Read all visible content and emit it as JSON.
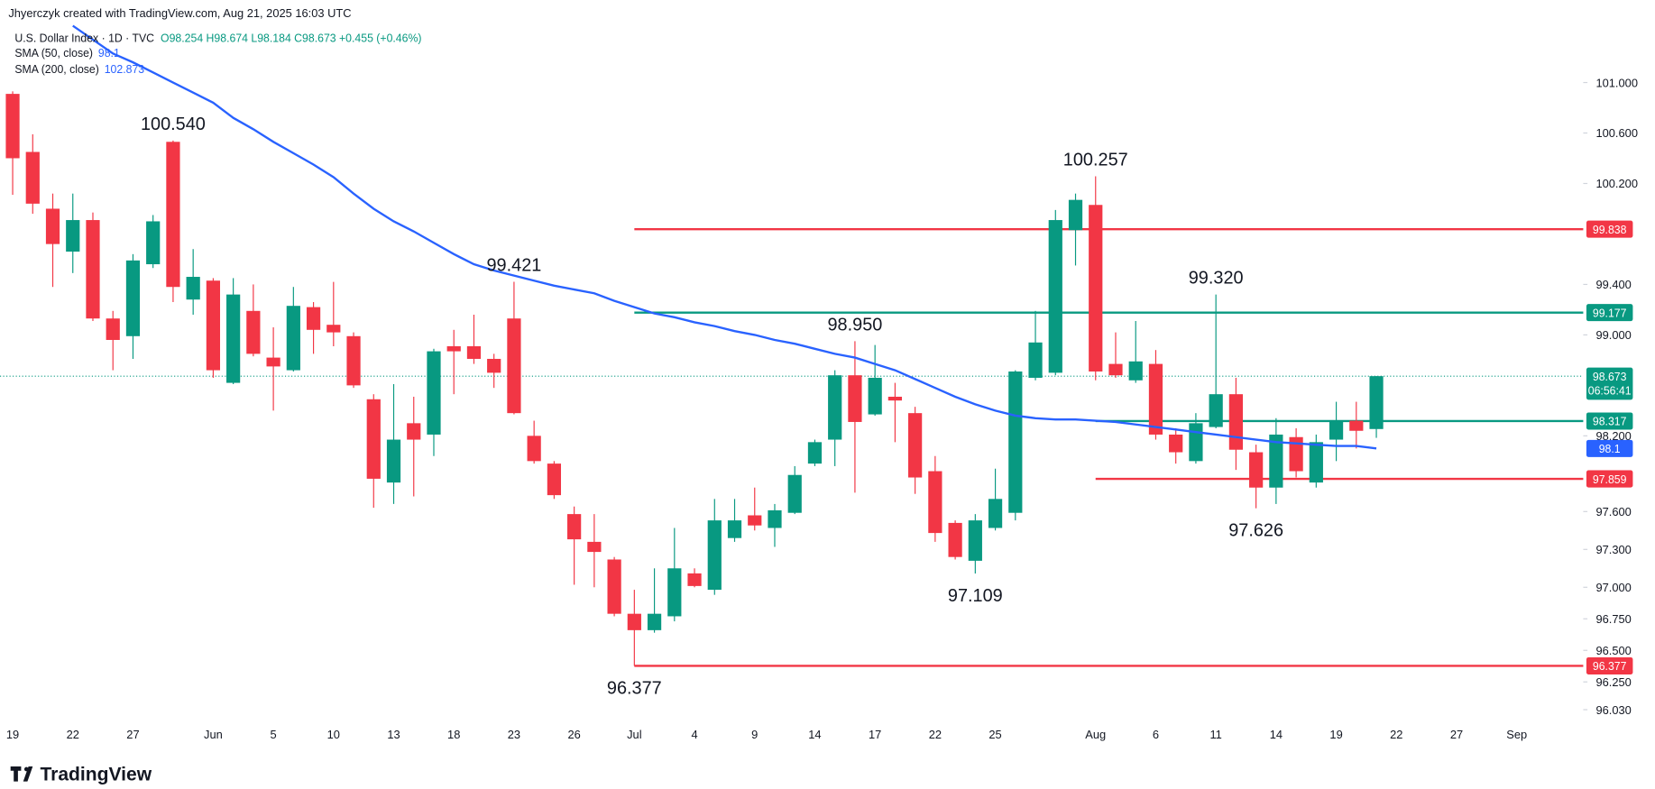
{
  "header": {
    "credit": "Jhyerczyk created with TradingView.com, Aug 21, 2025 16:03 UTC",
    "symbol": "U.S. Dollar Index · 1D · TVC",
    "ohlc": "O98.254 H98.674 L98.184 C98.673 +0.455 (+0.46%)"
  },
  "footer": {
    "brand": "TradingView"
  },
  "chart_data": {
    "type": "candlestick",
    "categories": [
      "19",
      null,
      null,
      "22",
      null,
      null,
      "27",
      null,
      null,
      null,
      "Jun",
      null,
      null,
      "5",
      null,
      null,
      "10",
      null,
      null,
      "13",
      null,
      null,
      "18",
      null,
      null,
      "23",
      null,
      null,
      "26",
      null,
      null,
      "Jul",
      null,
      null,
      "4",
      null,
      null,
      "9",
      null,
      null,
      "14",
      null,
      null,
      "17",
      null,
      null,
      "22",
      null,
      null,
      "25",
      null,
      null,
      null,
      null,
      "Aug",
      null,
      null,
      "6",
      null,
      null,
      "11",
      null,
      null,
      "14",
      null,
      null,
      "19",
      null,
      null,
      "22",
      null,
      null,
      "27",
      null,
      null,
      "Sep"
    ],
    "open": [
      100.91,
      100.45,
      100.0,
      99.66,
      99.91,
      99.13,
      98.99,
      99.56,
      100.53,
      99.28,
      99.43,
      98.62,
      99.19,
      98.82,
      98.72,
      99.22,
      99.08,
      98.99,
      98.49,
      97.83,
      98.3,
      98.21,
      98.91,
      98.91,
      98.81,
      99.13,
      98.2,
      97.98,
      97.58,
      97.36,
      97.22,
      96.79,
      96.66,
      96.77,
      97.11,
      96.98,
      97.39,
      97.57,
      97.47,
      97.59,
      97.98,
      98.17,
      98.68,
      98.37,
      98.51,
      98.38,
      97.92,
      97.51,
      97.21,
      97.47,
      97.59,
      98.66,
      98.7,
      99.83,
      100.03,
      98.77,
      98.64,
      98.77,
      98.21,
      98.0,
      98.27,
      98.53,
      98.07,
      97.79,
      98.19,
      97.83,
      98.17,
      98.32,
      98.254,
      null,
      null,
      null,
      null,
      null,
      null,
      null
    ],
    "high": [
      100.93,
      100.59,
      100.12,
      100.12,
      99.97,
      99.19,
      99.64,
      99.95,
      100.54,
      99.68,
      99.45,
      99.45,
      99.4,
      99.06,
      99.38,
      99.26,
      99.42,
      99.02,
      98.53,
      98.61,
      98.51,
      98.89,
      99.04,
      99.16,
      98.85,
      99.421,
      98.32,
      98.0,
      97.64,
      97.58,
      97.24,
      96.98,
      97.15,
      97.47,
      97.15,
      97.7,
      97.7,
      97.79,
      97.66,
      97.96,
      98.17,
      98.72,
      98.95,
      98.92,
      98.62,
      98.43,
      98.04,
      97.53,
      97.58,
      97.94,
      98.72,
      99.19,
      99.99,
      100.12,
      100.257,
      99.02,
      99.11,
      98.88,
      98.26,
      98.38,
      99.32,
      98.66,
      98.13,
      98.34,
      98.26,
      98.21,
      98.47,
      98.47,
      98.674,
      null,
      null,
      null,
      null,
      null,
      null,
      null
    ],
    "low": [
      100.11,
      99.96,
      99.38,
      99.49,
      99.11,
      98.72,
      98.81,
      99.53,
      99.26,
      99.16,
      98.66,
      98.61,
      98.83,
      98.4,
      98.71,
      98.85,
      98.91,
      98.58,
      97.63,
      97.66,
      97.72,
      98.04,
      98.53,
      98.77,
      98.58,
      98.37,
      97.98,
      97.7,
      97.02,
      97.0,
      96.77,
      96.377,
      96.64,
      96.73,
      97.0,
      96.94,
      97.36,
      97.45,
      97.32,
      97.58,
      97.96,
      97.96,
      97.75,
      98.36,
      98.15,
      97.74,
      97.36,
      97.22,
      97.109,
      97.45,
      97.53,
      98.64,
      98.68,
      99.55,
      98.64,
      98.66,
      98.62,
      98.17,
      97.98,
      97.98,
      98.26,
      97.93,
      97.626,
      97.66,
      97.87,
      97.79,
      98.0,
      98.1,
      98.184,
      null,
      null,
      null,
      null,
      null,
      null,
      null
    ],
    "close": [
      100.4,
      100.04,
      99.72,
      99.91,
      99.13,
      98.96,
      99.59,
      99.9,
      99.38,
      99.46,
      98.72,
      99.32,
      98.85,
      98.75,
      99.23,
      99.04,
      99.02,
      98.6,
      97.86,
      98.17,
      98.17,
      98.87,
      98.87,
      98.81,
      98.7,
      98.38,
      98.0,
      97.73,
      97.38,
      97.28,
      96.79,
      96.66,
      96.79,
      97.15,
      97.01,
      97.53,
      97.53,
      97.49,
      97.61,
      97.89,
      98.15,
      98.68,
      98.31,
      98.66,
      98.48,
      97.87,
      97.43,
      97.24,
      97.53,
      97.7,
      98.71,
      98.94,
      99.91,
      100.07,
      98.71,
      98.68,
      98.79,
      98.21,
      98.07,
      98.3,
      98.53,
      98.09,
      97.79,
      98.21,
      97.92,
      98.15,
      98.32,
      98.24,
      98.673,
      null,
      null,
      null,
      null,
      null,
      null,
      null
    ],
    "up_color": "#089981",
    "down_color": "#f23645",
    "series": [
      {
        "name": "SMA (50, close)",
        "color": "#2962ff",
        "values": [
          null,
          null,
          null,
          101.45,
          101.34,
          101.23,
          101.16,
          101.08,
          101.0,
          100.92,
          100.84,
          100.72,
          100.63,
          100.53,
          100.44,
          100.35,
          100.25,
          100.12,
          100.0,
          99.9,
          99.82,
          99.73,
          99.64,
          99.56,
          99.51,
          99.47,
          99.43,
          99.39,
          99.36,
          99.33,
          99.27,
          99.22,
          99.17,
          99.14,
          99.1,
          99.07,
          99.03,
          99.0,
          98.96,
          98.93,
          98.89,
          98.85,
          98.82,
          98.77,
          98.72,
          98.65,
          98.58,
          98.51,
          98.45,
          98.4,
          98.36,
          98.34,
          98.33,
          98.33,
          98.32,
          98.31,
          98.29,
          98.27,
          98.25,
          98.23,
          98.21,
          98.19,
          98.17,
          98.15,
          98.14,
          98.13,
          98.12,
          98.12,
          98.1,
          null,
          null,
          null,
          null,
          null,
          null,
          null
        ]
      }
    ],
    "sma200": {
      "name": "SMA (200, close)",
      "value": 102.873,
      "color": "#2962ff"
    },
    "last_price": {
      "countdown": "06:56:41",
      "color": "#089981"
    },
    "levels": [
      {
        "value": 99.838,
        "color": "#f23645",
        "from": "Jul"
      },
      {
        "value": 99.177,
        "color": "#089981",
        "from": "Jul"
      },
      {
        "value": 98.317,
        "color": "#089981",
        "from": "Aug"
      },
      {
        "value": 97.859,
        "color": "#f23645",
        "from": "Aug"
      },
      {
        "value": 96.377,
        "color": "#f23645",
        "from": "Jul"
      }
    ],
    "annotations": [
      {
        "value": 100.54,
        "label": "100.540"
      },
      {
        "value": 99.421,
        "label": "99.421"
      },
      {
        "value": 98.95,
        "label": "98.950"
      },
      {
        "value": 100.257,
        "label": "100.257"
      },
      {
        "value": 99.32,
        "label": "99.320"
      },
      {
        "value": 97.109,
        "label": "97.109"
      },
      {
        "value": 97.626,
        "label": "97.626"
      },
      {
        "value": 96.377,
        "label": "96.377"
      }
    ],
    "ylim": [
      95.945,
      101.654
    ],
    "yticks": [
      {
        "value": 101.0,
        "label": "101.000"
      },
      {
        "value": 100.6,
        "label": "100.600"
      },
      {
        "value": 100.2,
        "label": "100.200"
      },
      {
        "value": 99.4,
        "label": "99.400"
      },
      {
        "value": 99.0,
        "label": "99.000"
      },
      {
        "value": 98.2,
        "label": "98.200"
      },
      {
        "value": 97.6,
        "label": "97.600"
      },
      {
        "value": 97.3,
        "label": "97.300"
      },
      {
        "value": 97.0,
        "label": "97.000"
      },
      {
        "value": 96.75,
        "label": "96.750"
      },
      {
        "value": 96.5,
        "label": "96.500"
      },
      {
        "value": 96.25,
        "label": "96.250"
      },
      {
        "value": 96.03,
        "label": "96.030"
      }
    ],
    "grid": false
  }
}
